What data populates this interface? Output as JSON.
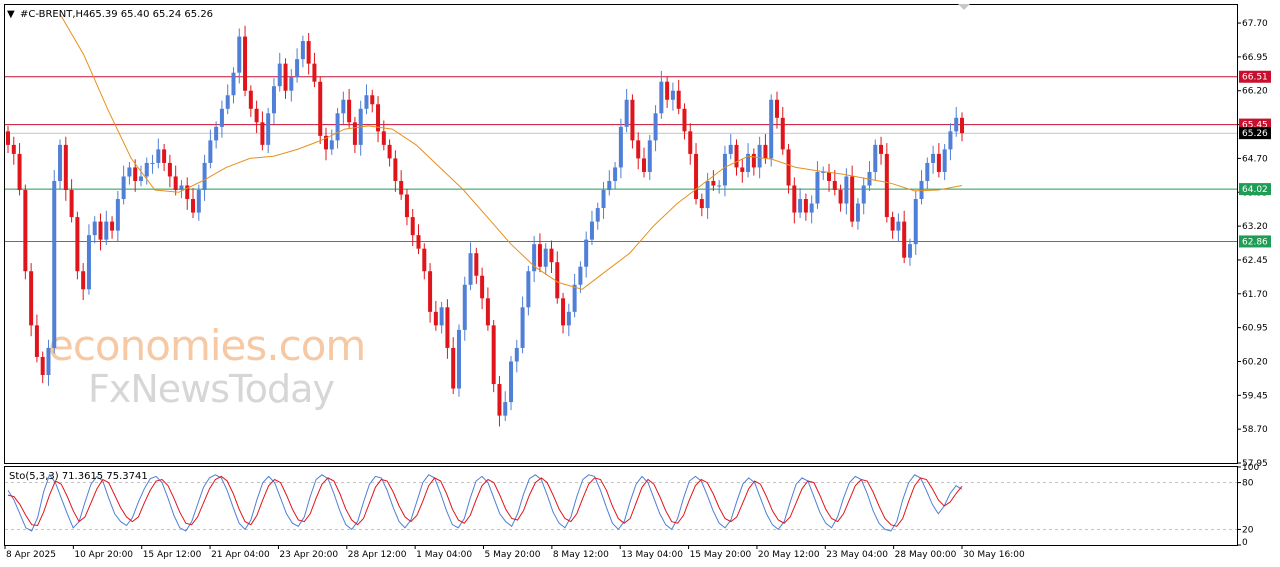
{
  "header": {
    "symbol": "#C-BRENT,H4",
    "ohlc": "65.39 65.40 65.24 65.26",
    "stoch_label": "Sto(5,3,3) 71.3615 75.3741"
  },
  "watermark": {
    "line1": "economies.com",
    "line2": "FxNewsToday"
  },
  "colors": {
    "bull": "#4f7fd6",
    "bear": "#e0151b",
    "ma": "#e8901c",
    "resistance": "#c8102e",
    "support": "#1f9d55",
    "current_price": "#000000",
    "stoch_main": "#4f7fd6",
    "stoch_signal": "#e0151b"
  },
  "chart_data": {
    "type": "candlestick",
    "symbol": "#C-BRENT",
    "timeframe": "H4",
    "ylim": [
      57.95,
      68.1
    ],
    "y_ticks": [
      "67.70",
      "66.95",
      "66.20",
      "65.45",
      "64.70",
      "63.95",
      "63.20",
      "62.45",
      "61.70",
      "60.95",
      "60.20",
      "59.45",
      "58.70",
      "57.95"
    ],
    "x_ticks": [
      "8 Apr 2025",
      "10 Apr 20:00",
      "15 Apr 12:00",
      "21 Apr 04:00",
      "23 Apr 20:00",
      "28 Apr 12:00",
      "1 May 04:00",
      "5 May 20:00",
      "8 May 12:00",
      "13 May 04:00",
      "15 May 20:00",
      "20 May 12:00",
      "23 May 04:00",
      "28 May 00:00",
      "30 May 16:00"
    ],
    "horizontal_lines": [
      {
        "name": "resistance",
        "value": 66.51,
        "label": "66.51"
      },
      {
        "name": "pivot",
        "value": 65.45,
        "label": "65.45"
      },
      {
        "name": "support-1",
        "value": 64.02,
        "label": "64.02"
      },
      {
        "name": "support-2",
        "value": 62.86,
        "label": "62.86"
      }
    ],
    "current_price": {
      "value": 65.26,
      "label": "65.26"
    },
    "closes": [
      65.0,
      64.8,
      64.0,
      62.2,
      61.0,
      60.3,
      59.9,
      60.5,
      64.2,
      65.0,
      64.0,
      63.4,
      62.2,
      61.8,
      63.0,
      63.3,
      62.9,
      63.3,
      63.1,
      63.8,
      64.3,
      64.5,
      64.2,
      64.3,
      64.6,
      64.6,
      64.9,
      64.6,
      64.3,
      64.0,
      64.1,
      63.8,
      63.5,
      64.0,
      64.6,
      65.1,
      65.4,
      65.8,
      66.1,
      66.6,
      67.4,
      66.2,
      65.8,
      65.5,
      65.0,
      65.7,
      66.3,
      66.8,
      66.2,
      66.5,
      66.9,
      67.3,
      66.8,
      66.4,
      65.2,
      64.9,
      65.1,
      65.7,
      66.0,
      65.5,
      65.0,
      65.8,
      66.1,
      65.9,
      65.3,
      65.0,
      64.7,
      64.2,
      63.9,
      63.4,
      63.0,
      62.7,
      62.2,
      61.3,
      61.0,
      61.4,
      60.5,
      59.6,
      60.9,
      61.9,
      62.6,
      62.1,
      61.6,
      61.0,
      59.7,
      59.0,
      59.3,
      60.2,
      60.5,
      61.4,
      62.2,
      62.8,
      62.3,
      62.7,
      62.4,
      61.6,
      61.0,
      61.3,
      61.9,
      62.3,
      62.9,
      63.3,
      63.6,
      64.0,
      64.2,
      64.5,
      65.4,
      66.0,
      65.1,
      64.7,
      64.4,
      65.1,
      65.7,
      66.4,
      66.0,
      66.2,
      65.8,
      65.3,
      64.8,
      63.8,
      63.6,
      64.2,
      64.1,
      64.1,
      64.8,
      65.0,
      64.5,
      64.4,
      64.8,
      64.5,
      65.0,
      64.7,
      66.0,
      65.6,
      64.9,
      64.1,
      63.5,
      63.8,
      63.5,
      63.7,
      64.4,
      64.4,
      64.2,
      64.0,
      63.7,
      64.3,
      63.3,
      63.7,
      64.1,
      64.4,
      65.0,
      64.8,
      63.4,
      63.1,
      63.3,
      62.5,
      62.8,
      63.8,
      64.2,
      64.6,
      64.8,
      64.4,
      64.9,
      65.3,
      65.6,
      65.26
    ],
    "moving_average": [
      67.9,
      67.0,
      65.8,
      64.7,
      64.0,
      63.95,
      64.2,
      64.5,
      64.7,
      64.75,
      64.9,
      65.1,
      65.35,
      65.42,
      65.35,
      65.0,
      64.5,
      64.0,
      63.4,
      62.8,
      62.3,
      61.95,
      61.8,
      62.2,
      62.6,
      63.2,
      63.7,
      64.1,
      64.5,
      64.75,
      64.68,
      64.5,
      64.42,
      64.35,
      64.25,
      64.15,
      63.98,
      64.0,
      64.1
    ]
  },
  "stochastic": {
    "label": "Sto(5,3,3)",
    "main_value": 71.3615,
    "signal_value": 75.3741,
    "ylim": [
      0,
      100
    ],
    "levels": [
      20,
      80
    ],
    "y_ticks": [
      "100",
      "80",
      "20",
      "0"
    ],
    "main": [
      70,
      58,
      40,
      22,
      18,
      35,
      68,
      90,
      80,
      60,
      40,
      22,
      30,
      55,
      78,
      88,
      82,
      60,
      40,
      30,
      25,
      35,
      55,
      72,
      85,
      88,
      80,
      60,
      38,
      22,
      18,
      30,
      52,
      74,
      86,
      90,
      86,
      70,
      48,
      28,
      20,
      32,
      58,
      80,
      88,
      80,
      60,
      40,
      28,
      24,
      36,
      62,
      84,
      90,
      85,
      66,
      44,
      26,
      20,
      30,
      55,
      78,
      88,
      86,
      70,
      48,
      30,
      22,
      32,
      56,
      80,
      90,
      86,
      66,
      44,
      26,
      22,
      34,
      60,
      82,
      88,
      80,
      60,
      40,
      30,
      24,
      40,
      65,
      85,
      90,
      84,
      64,
      42,
      28,
      22,
      36,
      62,
      84,
      90,
      88,
      70,
      48,
      28,
      20,
      30,
      56,
      78,
      88,
      80,
      60,
      40,
      26,
      20,
      34,
      60,
      82,
      88,
      82,
      64,
      44,
      28,
      22,
      32,
      56,
      78,
      86,
      80,
      60,
      40,
      26,
      20,
      30,
      55,
      78,
      86,
      82,
      62,
      42,
      28,
      22,
      36,
      60,
      80,
      88,
      84,
      66,
      44,
      28,
      20,
      18,
      30,
      58,
      80,
      90,
      86,
      70,
      52,
      40,
      50,
      66,
      76,
      71.4
    ],
    "signal": [
      64,
      62,
      52,
      38,
      26,
      25,
      42,
      64,
      82,
      78,
      62,
      44,
      30,
      36,
      54,
      72,
      84,
      80,
      64,
      48,
      36,
      30,
      36,
      54,
      70,
      82,
      84,
      76,
      60,
      42,
      28,
      26,
      36,
      54,
      72,
      84,
      88,
      82,
      66,
      46,
      30,
      26,
      38,
      58,
      76,
      84,
      80,
      64,
      46,
      32,
      30,
      40,
      60,
      78,
      86,
      82,
      66,
      46,
      32,
      26,
      34,
      54,
      74,
      84,
      82,
      68,
      50,
      36,
      30,
      38,
      56,
      76,
      86,
      82,
      66,
      46,
      32,
      28,
      38,
      58,
      76,
      84,
      80,
      64,
      46,
      34,
      32,
      44,
      64,
      80,
      86,
      80,
      64,
      46,
      34,
      30,
      40,
      60,
      78,
      86,
      84,
      70,
      50,
      34,
      28,
      34,
      54,
      74,
      84,
      78,
      62,
      44,
      30,
      28,
      38,
      58,
      76,
      84,
      80,
      66,
      48,
      34,
      30,
      36,
      54,
      72,
      82,
      78,
      62,
      44,
      32,
      28,
      36,
      54,
      72,
      82,
      80,
      64,
      46,
      34,
      30,
      40,
      58,
      76,
      84,
      82,
      68,
      50,
      34,
      26,
      24,
      34,
      56,
      76,
      86,
      84,
      72,
      58,
      50,
      55,
      66,
      75.4
    ]
  }
}
